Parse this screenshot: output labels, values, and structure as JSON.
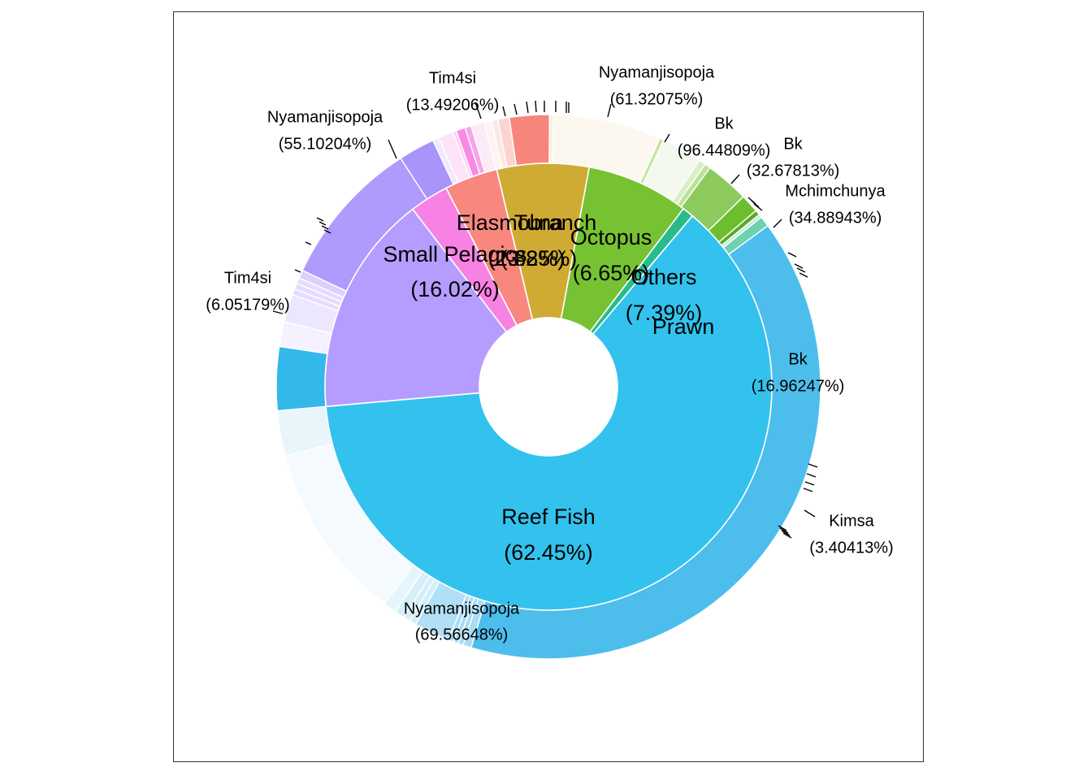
{
  "chart_data": {
    "type": "pie",
    "title": "",
    "inner_ring": [
      {
        "name": "Reef Fish",
        "value": 62.45,
        "label": "(62.45%)",
        "color": "#33C2EE"
      },
      {
        "name": "Small Pelagics",
        "value": 16.02,
        "label": "(16.02%)",
        "color": "#B59DFF"
      },
      {
        "name": "Elasmobranch",
        "value": 2.82,
        "label": "(2.82%)",
        "color": "#F882E3"
      },
      {
        "name": "Tuna",
        "value": 3.85,
        "label": "(3.85%)",
        "color": "#F8877E"
      },
      {
        "name": "Octopus",
        "value": 6.65,
        "label": "(6.65%)",
        "color": "#D0AB33"
      },
      {
        "name": "Others",
        "value": 7.39,
        "label": "(7.39%)",
        "color": "#77C233"
      },
      {
        "name": "Prawn",
        "value": 0.82,
        "label": "",
        "color": "#29BB8C"
      }
    ],
    "outer_labels": [
      {
        "name": "Nyamanjisopoja",
        "label": "(69.56648%)"
      },
      {
        "name": "Tim4si",
        "label": "(6.05179%)"
      },
      {
        "name": "Nyamanjisopoja",
        "label": "(55.10204%)"
      },
      {
        "name": "Tim4si",
        "label": "(13.49206%)"
      },
      {
        "name": "Nyamanjisopoja",
        "label": "(61.32075%)"
      },
      {
        "name": "Bk",
        "label": "(96.44809%)"
      },
      {
        "name": "Bk",
        "label": "(32.67813%)"
      },
      {
        "name": "Mchimchunya",
        "label": "(34.88943%)"
      },
      {
        "name": "Bk",
        "label": "(16.96247%)"
      },
      {
        "name": "Kimsa",
        "label": "(3.40413%)"
      }
    ],
    "outer_ring": [
      {
        "parent": "Reef Fish",
        "value": 43.44,
        "color": "#4DBDEC"
      },
      {
        "parent": "Reef Fish",
        "value": 0.5,
        "color": "#A9DCF5"
      },
      {
        "parent": "Reef Fish",
        "value": 0.3,
        "color": "#A9DCF5"
      },
      {
        "parent": "Reef Fish",
        "value": 0.3,
        "color": "#A9DCF5"
      },
      {
        "parent": "Reef Fish",
        "value": 0.3,
        "color": "#A9DCF5"
      },
      {
        "parent": "Reef Fish",
        "value": 2.13,
        "color": "#B1DFF6"
      },
      {
        "parent": "Reef Fish",
        "value": 0.4,
        "color": "#D4EEFA"
      },
      {
        "parent": "Reef Fish",
        "value": 0.4,
        "color": "#D4EEFA"
      },
      {
        "parent": "Reef Fish",
        "value": 0.6,
        "color": "#D4EEFA"
      },
      {
        "parent": "Reef Fish",
        "value": 0.8,
        "color": "#E6F5FC"
      },
      {
        "parent": "Reef Fish",
        "value": 10.59,
        "color": "#F4FAFE"
      },
      {
        "parent": "Reef Fish",
        "value": 2.69,
        "color": "#E8F6FC"
      },
      {
        "parent": "Reef Fish",
        "value": 3.78,
        "color": "#33B8EA"
      },
      {
        "parent": "Small Pelagics",
        "value": 1.48,
        "color": "#F5F1FF"
      },
      {
        "parent": "Small Pelagics",
        "value": 1.65,
        "color": "#EDE6FF"
      },
      {
        "parent": "Small Pelagics",
        "value": 0.35,
        "color": "#E6DCFF"
      },
      {
        "parent": "Small Pelagics",
        "value": 0.35,
        "color": "#E6DCFF"
      },
      {
        "parent": "Small Pelagics",
        "value": 0.35,
        "color": "#E6DCFF"
      },
      {
        "parent": "Small Pelagics",
        "value": 0.48,
        "color": "#DCD0FF"
      },
      {
        "parent": "Small Pelagics",
        "value": 8.83,
        "color": "#B09AFC"
      },
      {
        "parent": "Small Pelagics",
        "value": 2.16,
        "color": "#A994F9"
      },
      {
        "parent": "Small Pelagics",
        "value": 0.37,
        "color": "#F0E9FF"
      },
      {
        "parent": "Elasmobranch",
        "value": 0.9,
        "color": "#FDE3F8"
      },
      {
        "parent": "Elasmobranch",
        "value": 0.2,
        "color": "#FBD0F3"
      },
      {
        "parent": "Elasmobranch",
        "value": 0.55,
        "color": "#F98AE4"
      },
      {
        "parent": "Elasmobranch",
        "value": 0.37,
        "color": "#F6A5EA"
      },
      {
        "parent": "Elasmobranch",
        "value": 0.8,
        "color": "#FDEAF9"
      },
      {
        "parent": "Tuna",
        "value": 0.45,
        "color": "#FEF3F2"
      },
      {
        "parent": "Tuna",
        "value": 0.36,
        "color": "#FDE7E5"
      },
      {
        "parent": "Tuna",
        "value": 0.68,
        "color": "#FBD4D0"
      },
      {
        "parent": "Tuna",
        "value": 2.36,
        "color": "#F7857B"
      },
      {
        "parent": "Octopus",
        "value": 0.24,
        "color": "#FBF1DC"
      },
      {
        "parent": "Octopus",
        "value": 6.41,
        "color": "#FCF8EF"
      },
      {
        "parent": "Others",
        "value": 0.25,
        "color": "#C5E6A6"
      },
      {
        "parent": "Others",
        "value": 2.41,
        "color": "#F3F9EC"
      },
      {
        "parent": "Others",
        "value": 0.4,
        "color": "#D9EFC6"
      },
      {
        "parent": "Others",
        "value": 0.35,
        "color": "#BCE29A"
      },
      {
        "parent": "Others",
        "value": 2.58,
        "color": "#8DCA5E"
      },
      {
        "parent": "Others",
        "value": 1.1,
        "color": "#6DBE2F"
      },
      {
        "parent": "Others",
        "value": 0.3,
        "color": "#5EA927"
      },
      {
        "parent": "Prawn",
        "value": 0.2,
        "color": "#C0ECDD"
      },
      {
        "parent": "Prawn",
        "value": 0.62,
        "color": "#6DD2AE"
      }
    ]
  }
}
